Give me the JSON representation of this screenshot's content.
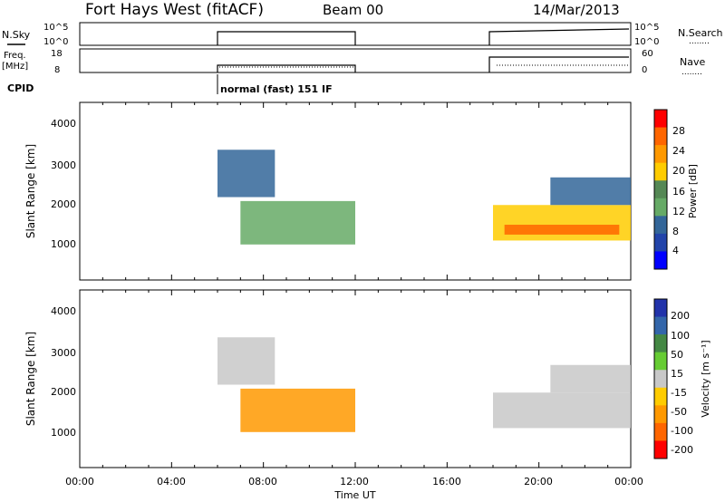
{
  "header": {
    "site": "Fort Hays West (fitACF)",
    "beam": "Beam 00",
    "date": "14/Mar/2013"
  },
  "summary": {
    "nsky_label": "N.Sky",
    "nsearch_label": "N.Search",
    "freq_label": "Freq.",
    "freq_unit": "[MHz]",
    "nave_label": "Nave",
    "cpid_label": "CPID",
    "cpid_text": "normal (fast) 151 IF",
    "noise_ticks_left": [
      "10^5",
      "10^0"
    ],
    "noise_ticks_right": [
      "10^5",
      "10^0"
    ],
    "freq_ticks": [
      "18",
      "8"
    ],
    "nave_ticks": [
      "60",
      "0"
    ],
    "legend_dots": "........"
  },
  "chart_data": [
    {
      "type": "heatmap",
      "panel": "power",
      "ylabel": "Slant Range [km]",
      "xlabel": "",
      "yticks": [
        "4000",
        "3000",
        "2000",
        "1000"
      ],
      "ylim": [
        0,
        4500
      ],
      "xlim_hours": [
        0,
        24
      ],
      "colorbar_label": "Power [dB]",
      "colorbar_ticks": [
        "28",
        "24",
        "20",
        "16",
        "12",
        "8",
        "4"
      ],
      "colorbar_colors": [
        "#ff0000",
        "#ff6600",
        "#ff9900",
        "#ffcc00",
        "#558855",
        "#66aa66",
        "#336699",
        "#2244aa",
        "#0000ff"
      ],
      "regions": [
        {
          "t_start": 7.0,
          "t_end": 12.0,
          "range_km": [
            900,
            2000
          ],
          "power_db": 10
        },
        {
          "t_start": 6.0,
          "t_end": 8.5,
          "range_km": [
            2100,
            3300
          ],
          "power_db": 8
        },
        {
          "t_start": 18.0,
          "t_end": 24.0,
          "range_km": [
            1000,
            1900
          ],
          "power_db": 16
        },
        {
          "t_start": 18.5,
          "t_end": 23.5,
          "range_km": [
            1150,
            1400
          ],
          "power_db": 26
        },
        {
          "t_start": 20.5,
          "t_end": 24.0,
          "range_km": [
            1900,
            2600
          ],
          "power_db": 6
        }
      ]
    },
    {
      "type": "heatmap",
      "panel": "velocity",
      "ylabel": "Slant Range [km]",
      "xlabel": "Time UT",
      "yticks": [
        "4000",
        "3000",
        "2000",
        "1000"
      ],
      "ylim": [
        0,
        4500
      ],
      "xticks": [
        "00:00",
        "04:00",
        "08:00",
        "12:00",
        "16:00",
        "20:00",
        "00:00"
      ],
      "colorbar_label": "Velocity [m s⁻¹]",
      "colorbar_ticks": [
        "200",
        "100",
        "50",
        "15",
        "-15",
        "-50",
        "-100",
        "-200"
      ],
      "colorbar_colors": [
        "#2233aa",
        "#3366aa",
        "#448844",
        "#66cc33",
        "#c8c8c8",
        "#ffcc00",
        "#ff9900",
        "#ff6600",
        "#ff0000"
      ],
      "regions": [
        {
          "t_start": 7.0,
          "t_end": 12.0,
          "range_km": [
            900,
            2000
          ],
          "velocity_ms": -60
        },
        {
          "t_start": 6.0,
          "t_end": 8.5,
          "range_km": [
            2100,
            3300
          ],
          "velocity_ms": 0
        },
        {
          "t_start": 18.0,
          "t_end": 24.0,
          "range_km": [
            1000,
            1900
          ],
          "velocity_ms": 0
        },
        {
          "t_start": 20.5,
          "t_end": 24.0,
          "range_km": [
            1900,
            2600
          ],
          "velocity_ms": 0
        }
      ]
    }
  ]
}
